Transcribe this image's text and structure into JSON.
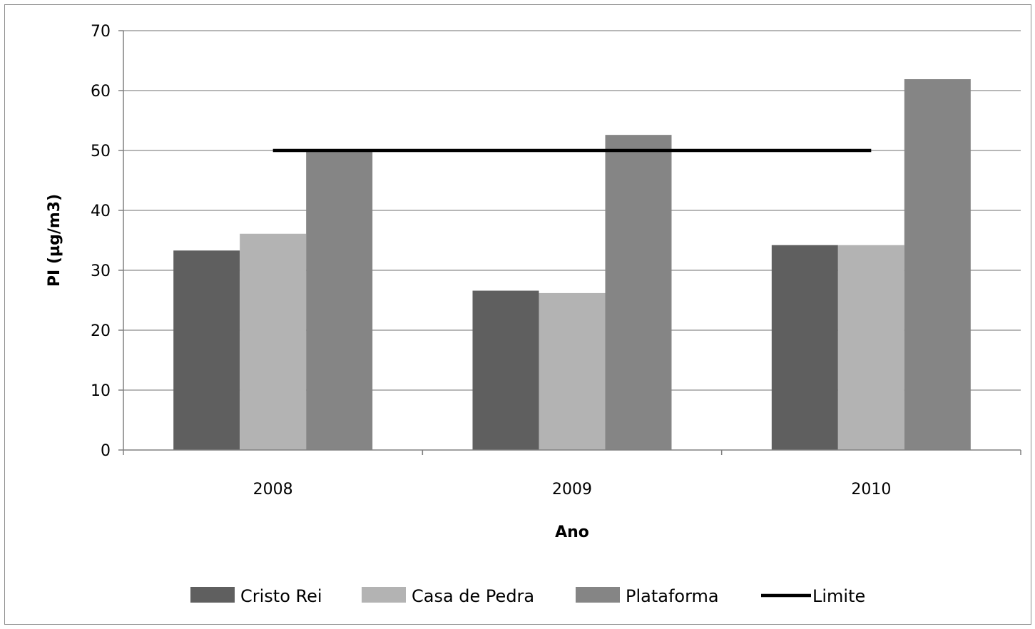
{
  "chart_data": {
    "type": "bar",
    "title": "",
    "xlabel": "Ano",
    "ylabel": "PI (µg/m3)",
    "categories": [
      "2008",
      "2009",
      "2010"
    ],
    "ylim": [
      0,
      70
    ],
    "yticks": [
      0,
      10,
      20,
      30,
      40,
      50,
      60,
      70
    ],
    "grid": true,
    "legend_position": "bottom",
    "series": [
      {
        "name": "Cristo Rei",
        "type": "bar",
        "color": "#5f5f5f",
        "values": [
          33.3,
          26.6,
          34.2
        ]
      },
      {
        "name": "Casa de Pedra",
        "type": "bar",
        "color": "#b3b3b3",
        "values": [
          36.1,
          26.2,
          34.2
        ]
      },
      {
        "name": "Plataforma",
        "type": "bar",
        "color": "#858585",
        "values": [
          50.0,
          52.6,
          61.9
        ]
      },
      {
        "name": "Limite",
        "type": "line",
        "color": "#000000",
        "values": [
          50,
          50,
          50
        ]
      }
    ]
  }
}
